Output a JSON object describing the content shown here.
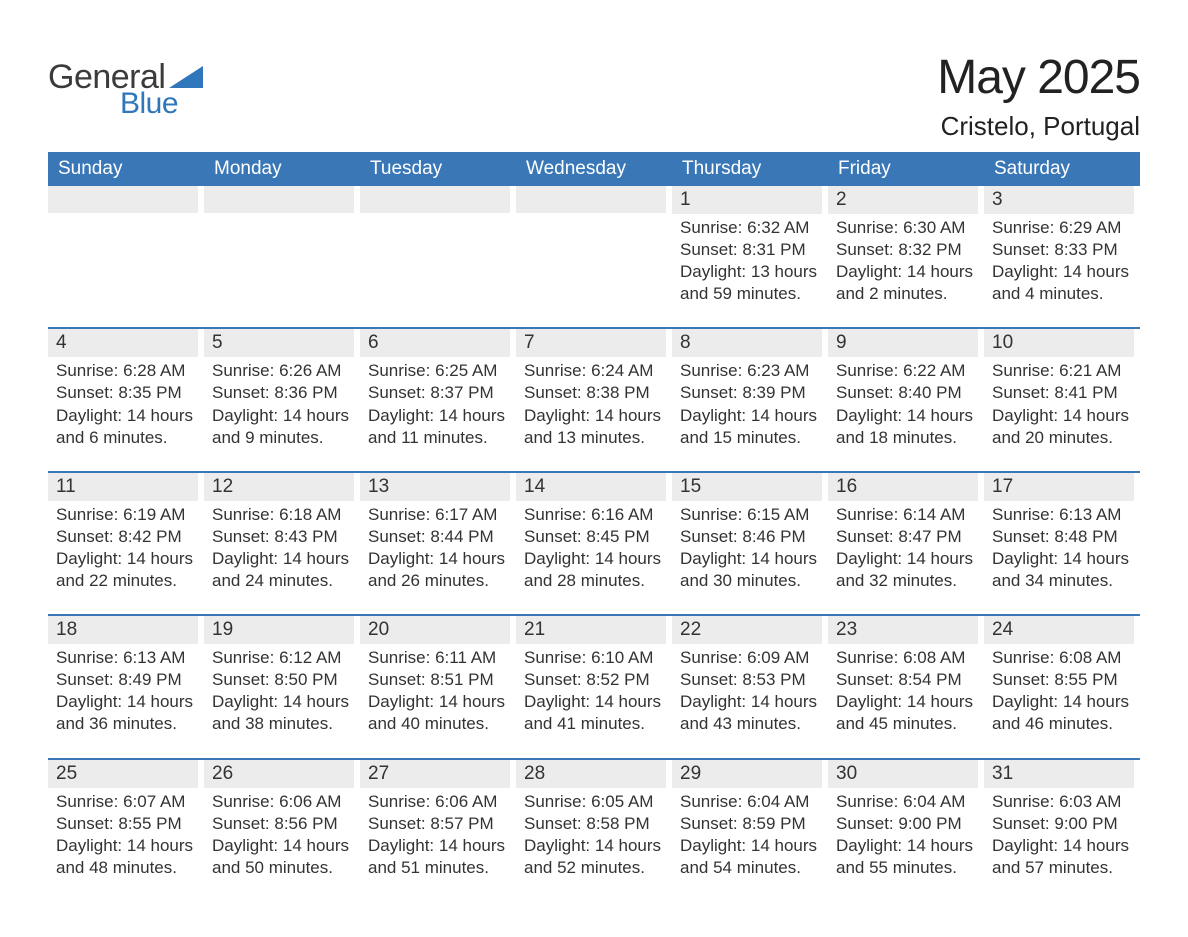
{
  "brand": {
    "word1": "General",
    "word2": "Blue",
    "word1_color": "#3b3b3b",
    "word2_color": "#2f76bb",
    "triangle_color": "#2f76bb"
  },
  "title": {
    "month_year": "May 2025",
    "location": "Cristelo, Portugal"
  },
  "colors": {
    "header_bg": "#3a77b7",
    "header_text": "#ffffff",
    "daynum_bg": "#ececec",
    "text": "#333333",
    "week_divider": "#3a77b7",
    "page_bg": "#ffffff"
  },
  "typography": {
    "title_fontsize_pt": 36,
    "location_fontsize_pt": 20,
    "header_fontsize_pt": 14,
    "daynum_fontsize_pt": 14,
    "body_fontsize_pt": 13
  },
  "day_headers": [
    "Sunday",
    "Monday",
    "Tuesday",
    "Wednesday",
    "Thursday",
    "Friday",
    "Saturday"
  ],
  "weeks": [
    [
      {
        "num": "",
        "lines": []
      },
      {
        "num": "",
        "lines": []
      },
      {
        "num": "",
        "lines": []
      },
      {
        "num": "",
        "lines": []
      },
      {
        "num": "1",
        "lines": [
          "Sunrise: 6:32 AM",
          "Sunset: 8:31 PM",
          "Daylight: 13 hours",
          "and 59 minutes."
        ]
      },
      {
        "num": "2",
        "lines": [
          "Sunrise: 6:30 AM",
          "Sunset: 8:32 PM",
          "Daylight: 14 hours",
          "and 2 minutes."
        ]
      },
      {
        "num": "3",
        "lines": [
          "Sunrise: 6:29 AM",
          "Sunset: 8:33 PM",
          "Daylight: 14 hours",
          "and 4 minutes."
        ]
      }
    ],
    [
      {
        "num": "4",
        "lines": [
          "Sunrise: 6:28 AM",
          "Sunset: 8:35 PM",
          "Daylight: 14 hours",
          "and 6 minutes."
        ]
      },
      {
        "num": "5",
        "lines": [
          "Sunrise: 6:26 AM",
          "Sunset: 8:36 PM",
          "Daylight: 14 hours",
          "and 9 minutes."
        ]
      },
      {
        "num": "6",
        "lines": [
          "Sunrise: 6:25 AM",
          "Sunset: 8:37 PM",
          "Daylight: 14 hours",
          "and 11 minutes."
        ]
      },
      {
        "num": "7",
        "lines": [
          "Sunrise: 6:24 AM",
          "Sunset: 8:38 PM",
          "Daylight: 14 hours",
          "and 13 minutes."
        ]
      },
      {
        "num": "8",
        "lines": [
          "Sunrise: 6:23 AM",
          "Sunset: 8:39 PM",
          "Daylight: 14 hours",
          "and 15 minutes."
        ]
      },
      {
        "num": "9",
        "lines": [
          "Sunrise: 6:22 AM",
          "Sunset: 8:40 PM",
          "Daylight: 14 hours",
          "and 18 minutes."
        ]
      },
      {
        "num": "10",
        "lines": [
          "Sunrise: 6:21 AM",
          "Sunset: 8:41 PM",
          "Daylight: 14 hours",
          "and 20 minutes."
        ]
      }
    ],
    [
      {
        "num": "11",
        "lines": [
          "Sunrise: 6:19 AM",
          "Sunset: 8:42 PM",
          "Daylight: 14 hours",
          "and 22 minutes."
        ]
      },
      {
        "num": "12",
        "lines": [
          "Sunrise: 6:18 AM",
          "Sunset: 8:43 PM",
          "Daylight: 14 hours",
          "and 24 minutes."
        ]
      },
      {
        "num": "13",
        "lines": [
          "Sunrise: 6:17 AM",
          "Sunset: 8:44 PM",
          "Daylight: 14 hours",
          "and 26 minutes."
        ]
      },
      {
        "num": "14",
        "lines": [
          "Sunrise: 6:16 AM",
          "Sunset: 8:45 PM",
          "Daylight: 14 hours",
          "and 28 minutes."
        ]
      },
      {
        "num": "15",
        "lines": [
          "Sunrise: 6:15 AM",
          "Sunset: 8:46 PM",
          "Daylight: 14 hours",
          "and 30 minutes."
        ]
      },
      {
        "num": "16",
        "lines": [
          "Sunrise: 6:14 AM",
          "Sunset: 8:47 PM",
          "Daylight: 14 hours",
          "and 32 minutes."
        ]
      },
      {
        "num": "17",
        "lines": [
          "Sunrise: 6:13 AM",
          "Sunset: 8:48 PM",
          "Daylight: 14 hours",
          "and 34 minutes."
        ]
      }
    ],
    [
      {
        "num": "18",
        "lines": [
          "Sunrise: 6:13 AM",
          "Sunset: 8:49 PM",
          "Daylight: 14 hours",
          "and 36 minutes."
        ]
      },
      {
        "num": "19",
        "lines": [
          "Sunrise: 6:12 AM",
          "Sunset: 8:50 PM",
          "Daylight: 14 hours",
          "and 38 minutes."
        ]
      },
      {
        "num": "20",
        "lines": [
          "Sunrise: 6:11 AM",
          "Sunset: 8:51 PM",
          "Daylight: 14 hours",
          "and 40 minutes."
        ]
      },
      {
        "num": "21",
        "lines": [
          "Sunrise: 6:10 AM",
          "Sunset: 8:52 PM",
          "Daylight: 14 hours",
          "and 41 minutes."
        ]
      },
      {
        "num": "22",
        "lines": [
          "Sunrise: 6:09 AM",
          "Sunset: 8:53 PM",
          "Daylight: 14 hours",
          "and 43 minutes."
        ]
      },
      {
        "num": "23",
        "lines": [
          "Sunrise: 6:08 AM",
          "Sunset: 8:54 PM",
          "Daylight: 14 hours",
          "and 45 minutes."
        ]
      },
      {
        "num": "24",
        "lines": [
          "Sunrise: 6:08 AM",
          "Sunset: 8:55 PM",
          "Daylight: 14 hours",
          "and 46 minutes."
        ]
      }
    ],
    [
      {
        "num": "25",
        "lines": [
          "Sunrise: 6:07 AM",
          "Sunset: 8:55 PM",
          "Daylight: 14 hours",
          "and 48 minutes."
        ]
      },
      {
        "num": "26",
        "lines": [
          "Sunrise: 6:06 AM",
          "Sunset: 8:56 PM",
          "Daylight: 14 hours",
          "and 50 minutes."
        ]
      },
      {
        "num": "27",
        "lines": [
          "Sunrise: 6:06 AM",
          "Sunset: 8:57 PM",
          "Daylight: 14 hours",
          "and 51 minutes."
        ]
      },
      {
        "num": "28",
        "lines": [
          "Sunrise: 6:05 AM",
          "Sunset: 8:58 PM",
          "Daylight: 14 hours",
          "and 52 minutes."
        ]
      },
      {
        "num": "29",
        "lines": [
          "Sunrise: 6:04 AM",
          "Sunset: 8:59 PM",
          "Daylight: 14 hours",
          "and 54 minutes."
        ]
      },
      {
        "num": "30",
        "lines": [
          "Sunrise: 6:04 AM",
          "Sunset: 9:00 PM",
          "Daylight: 14 hours",
          "and 55 minutes."
        ]
      },
      {
        "num": "31",
        "lines": [
          "Sunrise: 6:03 AM",
          "Sunset: 9:00 PM",
          "Daylight: 14 hours",
          "and 57 minutes."
        ]
      }
    ]
  ]
}
